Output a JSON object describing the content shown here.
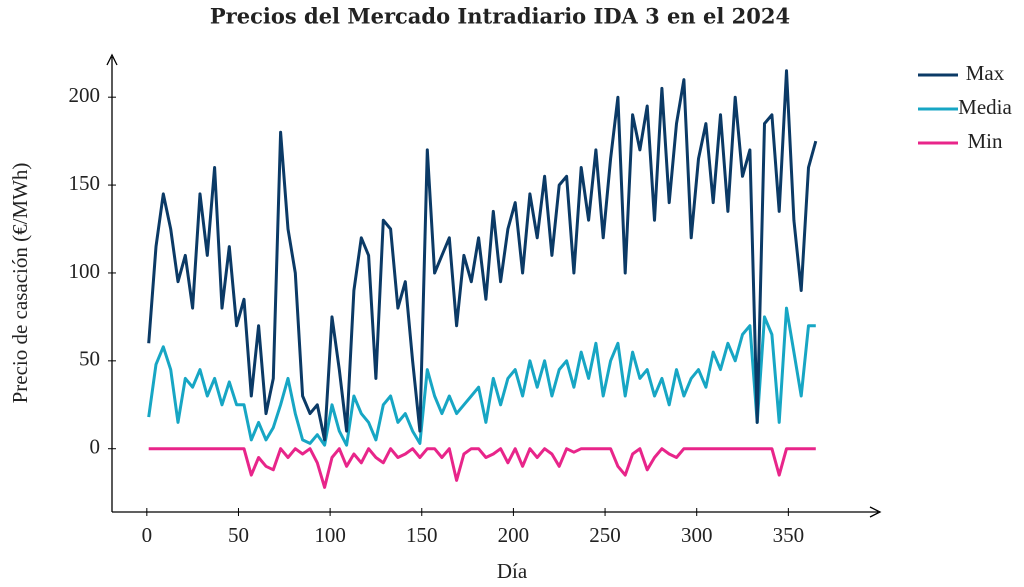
{
  "chart_data": {
    "type": "line",
    "title": "Precios del Mercado Intradiario IDA 3 en el 2024",
    "x_label": "Día",
    "y_label": "Precio de casación (€/MWh)",
    "x": [
      1,
      5,
      9,
      13,
      17,
      21,
      25,
      29,
      33,
      37,
      41,
      45,
      49,
      53,
      57,
      61,
      65,
      69,
      73,
      77,
      81,
      85,
      89,
      93,
      97,
      101,
      105,
      109,
      113,
      117,
      121,
      125,
      129,
      133,
      137,
      141,
      145,
      149,
      153,
      157,
      161,
      165,
      169,
      173,
      177,
      181,
      185,
      189,
      193,
      197,
      201,
      205,
      209,
      213,
      217,
      221,
      225,
      229,
      233,
      237,
      241,
      245,
      249,
      253,
      257,
      261,
      265,
      269,
      273,
      277,
      281,
      285,
      289,
      293,
      297,
      301,
      305,
      309,
      313,
      317,
      321,
      325,
      329,
      333,
      337,
      341,
      345,
      349,
      353,
      357,
      361,
      365
    ],
    "series": [
      {
        "name": "Max",
        "color": "#0b3a66",
        "values": [
          60,
          115,
          145,
          125,
          95,
          110,
          80,
          145,
          110,
          160,
          80,
          115,
          70,
          85,
          30,
          70,
          20,
          40,
          180,
          125,
          100,
          30,
          20,
          25,
          5,
          75,
          45,
          10,
          90,
          120,
          110,
          40,
          130,
          125,
          80,
          95,
          50,
          10,
          170,
          100,
          110,
          120,
          70,
          110,
          95,
          120,
          85,
          135,
          95,
          125,
          140,
          100,
          145,
          120,
          155,
          110,
          150,
          155,
          100,
          160,
          130,
          170,
          120,
          165,
          200,
          100,
          190,
          170,
          195,
          130,
          205,
          140,
          185,
          210,
          120,
          165,
          185,
          140,
          190,
          135,
          200,
          155,
          170,
          15,
          185,
          190,
          135,
          215,
          130,
          90,
          160,
          175
        ]
      },
      {
        "name": "Media",
        "color": "#17a6c4",
        "values": [
          18,
          48,
          58,
          45,
          15,
          40,
          35,
          45,
          30,
          40,
          25,
          38,
          25,
          25,
          5,
          15,
          5,
          12,
          25,
          40,
          20,
          5,
          3,
          8,
          2,
          25,
          10,
          2,
          30,
          20,
          15,
          5,
          25,
          30,
          15,
          20,
          10,
          3,
          45,
          30,
          20,
          30,
          20,
          25,
          30,
          35,
          15,
          40,
          25,
          40,
          45,
          30,
          50,
          35,
          50,
          30,
          45,
          50,
          35,
          55,
          40,
          60,
          30,
          50,
          60,
          30,
          55,
          40,
          45,
          30,
          40,
          25,
          45,
          30,
          40,
          45,
          35,
          55,
          45,
          60,
          50,
          65,
          70,
          15,
          75,
          65,
          15,
          80,
          55,
          30,
          70,
          70
        ]
      },
      {
        "name": "Min",
        "color": "#e8258a",
        "values": [
          0,
          0,
          0,
          0,
          0,
          0,
          0,
          0,
          0,
          0,
          0,
          0,
          0,
          0,
          -15,
          -5,
          -10,
          -12,
          0,
          -5,
          0,
          -3,
          0,
          -8,
          -22,
          -5,
          0,
          -10,
          -3,
          -8,
          0,
          -5,
          -8,
          0,
          -5,
          -3,
          0,
          -5,
          0,
          0,
          -5,
          0,
          -18,
          -3,
          0,
          0,
          -5,
          -3,
          0,
          -8,
          0,
          -10,
          0,
          -5,
          0,
          -3,
          -10,
          0,
          -2,
          0,
          0,
          0,
          0,
          0,
          -10,
          -15,
          -3,
          0,
          -12,
          -5,
          0,
          -3,
          -5,
          0,
          0,
          0,
          0,
          0,
          0,
          0,
          0,
          0,
          0,
          0,
          0,
          0,
          -15,
          0,
          0,
          0,
          0,
          0
        ]
      }
    ],
    "xlim": [
      -19,
      400
    ],
    "ylim": [
      -36,
      224
    ],
    "xticks": [
      0,
      50,
      100,
      150,
      200,
      250,
      300,
      350
    ],
    "yticks": [
      0,
      50,
      100,
      150,
      200
    ],
    "legend": "upper right"
  }
}
